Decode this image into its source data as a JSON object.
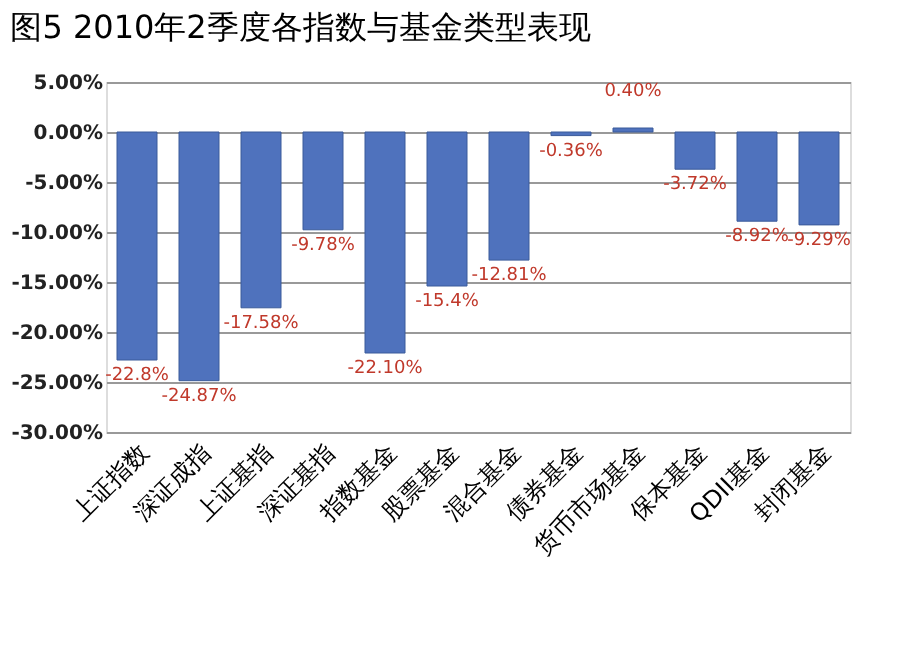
{
  "chart_data": {
    "type": "bar",
    "title": "图5  2010年2季度各指数与基金类型表现",
    "categories": [
      "上证指数",
      "深证成指",
      "上证基指",
      "深证基指",
      "指数基金",
      "股票基金",
      "混合基金",
      "债券基金",
      "货币市场基金",
      "保本基金",
      "QDII基金",
      "封闭基金"
    ],
    "values": [
      -22.8,
      -24.87,
      -17.58,
      -9.78,
      -22.1,
      -15.4,
      -12.81,
      -0.36,
      0.4,
      -3.72,
      -8.92,
      -9.29
    ],
    "value_labels": [
      "-22.8%",
      "-24.87%",
      "-17.58%",
      "-9.78%",
      "-22.10%",
      "-15.4%",
      "-12.81%",
      "-0.36%",
      "0.40%",
      "-3.72%",
      "-8.92%",
      "-9.29%"
    ],
    "color": "#4f72bd",
    "ylim": [
      -30,
      5
    ],
    "yticks": [
      {
        "value": 5,
        "label": "5.00%"
      },
      {
        "value": 0,
        "label": "0.00%"
      },
      {
        "value": -5,
        "label": "-5.00%"
      },
      {
        "value": -10,
        "label": "-10.00%"
      },
      {
        "value": -15,
        "label": "-15.00%"
      },
      {
        "value": -20,
        "label": "-20.00%"
      },
      {
        "value": -25,
        "label": "-25.00%"
      },
      {
        "value": -30,
        "label": "-30.00%"
      }
    ],
    "grid": "y"
  }
}
